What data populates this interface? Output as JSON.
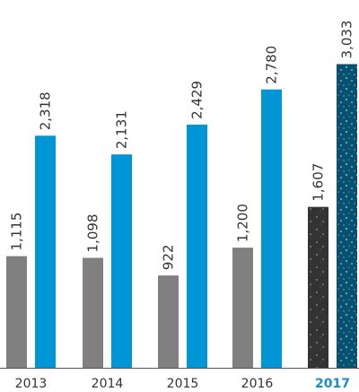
{
  "chart_data": {
    "type": "bar",
    "categories": [
      "2013",
      "2014",
      "2015",
      "2016",
      "2017"
    ],
    "series": [
      {
        "values": [
          1115,
          1098,
          922,
          1200,
          1607
        ]
      },
      {
        "values": [
          2318,
          2131,
          2429,
          2780,
          3033
        ]
      }
    ],
    "value_labels": [
      [
        "1,115",
        "1,098",
        "922",
        "1,200",
        "1,607"
      ],
      [
        "2,318",
        "2,131",
        "2,429",
        "2,780",
        "3,033"
      ]
    ],
    "highlight_category": "2017",
    "ylim": [
      0,
      3100
    ],
    "grid": false,
    "legend": "none",
    "colors": {
      "series_1": "#808080",
      "series_2": "#0096d6",
      "series_1_highlight": "#3a3a3a",
      "series_2_highlight": "#0a5a7a",
      "highlight_text": "#1a8ccd",
      "baseline": "#555555"
    },
    "xlabel": "",
    "ylabel": "",
    "title": ""
  }
}
